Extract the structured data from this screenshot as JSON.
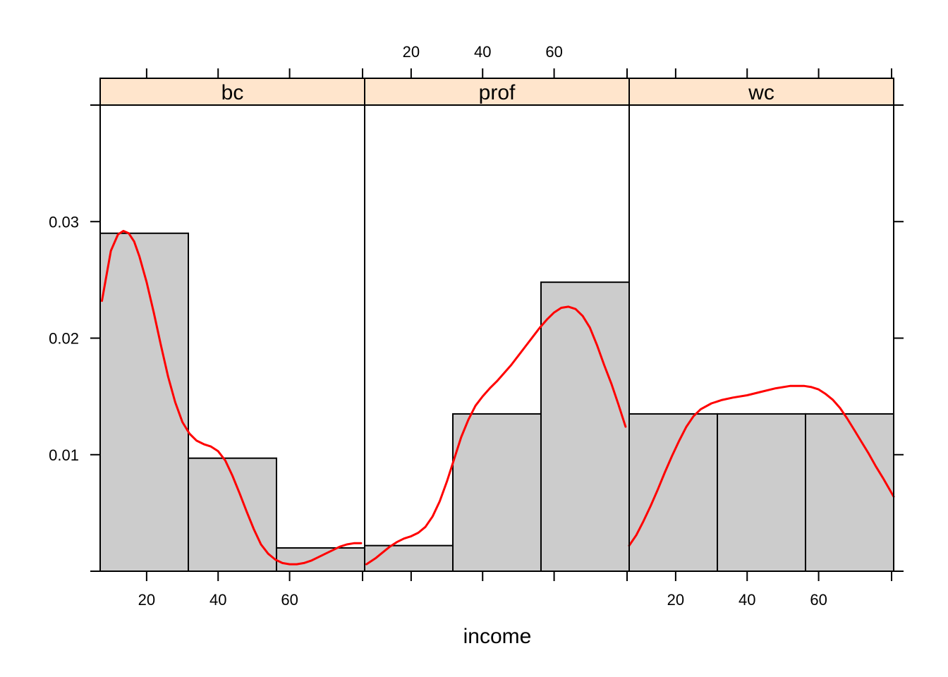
{
  "chart_data": {
    "type": "histogram",
    "xlabel": "income",
    "ylabel": "",
    "xlim": [
      7,
      81
    ],
    "ylim": [
      0,
      0.04
    ],
    "x_ticks": [
      20,
      40,
      60
    ],
    "y_ticks": [
      0.01,
      0.02,
      0.03
    ],
    "y_tick_labels": [
      "0.01",
      "0.02",
      "0.03"
    ],
    "grid": false,
    "colors": {
      "bar_fill": "#cccccc",
      "bar_stroke": "#000000",
      "density_line": "#ff0000",
      "strip_fill": "#ffe5cc"
    },
    "bin_edges": [
      7,
      31.67,
      56.33,
      81
    ],
    "panels": [
      {
        "name": "bc",
        "densities": [
          0.029,
          0.0097,
          0.002
        ],
        "density_curve": {
          "x": [
            7.5,
            10,
            12,
            13.5,
            15,
            16.5,
            18,
            20,
            22,
            24,
            26,
            28,
            30,
            32,
            34,
            36,
            38,
            40,
            42,
            44,
            46,
            48,
            50,
            52,
            54,
            56,
            58,
            60,
            62,
            64,
            66,
            68,
            70,
            72,
            74,
            76,
            78,
            80
          ],
          "y": [
            0.0232,
            0.0275,
            0.0289,
            0.0292,
            0.029,
            0.0283,
            0.027,
            0.0248,
            0.0222,
            0.0194,
            0.0167,
            0.0145,
            0.0128,
            0.0118,
            0.0112,
            0.0109,
            0.0107,
            0.0103,
            0.0095,
            0.0082,
            0.0067,
            0.0051,
            0.0036,
            0.0023,
            0.0015,
            0.001,
            0.0007,
            0.0006,
            0.0006,
            0.0007,
            0.0009,
            0.0012,
            0.0015,
            0.0018,
            0.0021,
            0.0023,
            0.0024,
            0.0024
          ]
        }
      },
      {
        "name": "prof",
        "densities": [
          0.0022,
          0.0135,
          0.0248
        ],
        "density_curve": {
          "x": [
            7.5,
            10,
            12,
            14,
            16,
            18,
            20,
            22,
            24,
            26,
            28,
            30,
            32,
            34,
            36,
            38,
            40,
            42,
            44,
            46,
            48,
            50,
            52,
            54,
            56,
            58,
            60,
            62,
            64,
            66,
            68,
            70,
            72,
            74,
            76,
            78,
            80
          ],
          "y": [
            0.0006,
            0.0011,
            0.0016,
            0.0021,
            0.0025,
            0.0028,
            0.003,
            0.0033,
            0.0038,
            0.0047,
            0.006,
            0.0077,
            0.0096,
            0.0115,
            0.013,
            0.0142,
            0.015,
            0.0157,
            0.0163,
            0.017,
            0.0177,
            0.0185,
            0.0193,
            0.0201,
            0.0209,
            0.0216,
            0.0222,
            0.0226,
            0.0227,
            0.0225,
            0.0219,
            0.0209,
            0.0194,
            0.0177,
            0.0161,
            0.0143,
            0.0124
          ]
        }
      },
      {
        "name": "wc",
        "densities": [
          0.0135,
          0.0135,
          0.0135
        ],
        "density_curve": {
          "x": [
            7,
            9,
            11,
            13,
            15,
            17,
            19,
            21,
            23,
            25,
            27,
            30,
            33,
            36,
            40,
            44,
            48,
            52,
            56,
            58,
            60,
            62,
            64,
            66,
            68,
            70,
            72,
            74,
            76,
            78,
            81
          ],
          "y": [
            0.0022,
            0.0031,
            0.0043,
            0.0056,
            0.007,
            0.0085,
            0.0099,
            0.0112,
            0.0124,
            0.0133,
            0.0139,
            0.0144,
            0.0147,
            0.0149,
            0.0151,
            0.0154,
            0.0157,
            0.0159,
            0.0159,
            0.0158,
            0.0156,
            0.0152,
            0.0147,
            0.014,
            0.0131,
            0.0121,
            0.0111,
            0.0101,
            0.009,
            0.008,
            0.0064
          ]
        }
      }
    ]
  }
}
